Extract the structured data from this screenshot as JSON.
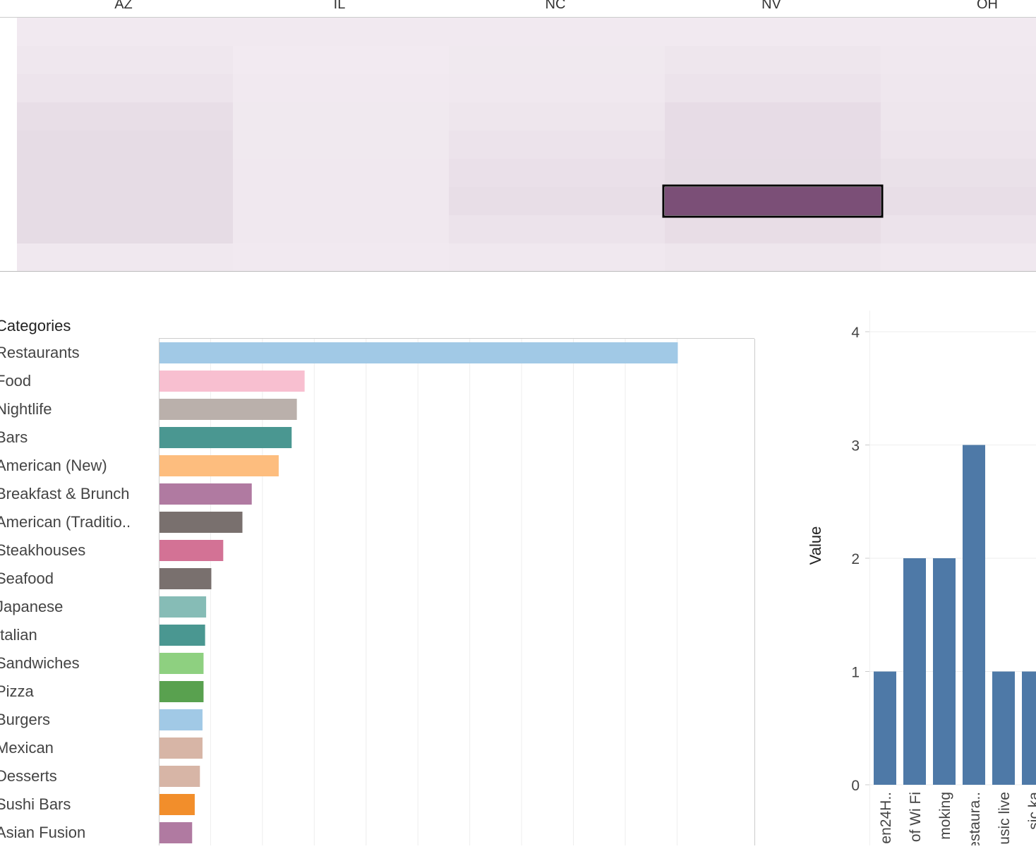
{
  "colors": {
    "heat_low": "#f3ecf2",
    "heat_high": "#7b4f77",
    "column_bar": "#4e79a7",
    "axis": "#cccccc",
    "grid": "#eeeeee"
  },
  "heatmap": {
    "columns": [
      "AZ",
      "IL",
      "NC",
      "NV",
      "OH"
    ],
    "rows": 9,
    "intensity": [
      [
        0.03,
        0.03,
        0.03,
        0.03,
        0.03
      ],
      [
        0.06,
        0.02,
        0.04,
        0.07,
        0.05
      ],
      [
        0.09,
        0.03,
        0.05,
        0.11,
        0.06
      ],
      [
        0.16,
        0.04,
        0.07,
        0.18,
        0.07
      ],
      [
        0.19,
        0.04,
        0.1,
        0.18,
        0.09
      ],
      [
        0.19,
        0.05,
        0.14,
        0.19,
        0.13
      ],
      [
        0.19,
        0.05,
        0.16,
        1.0,
        0.16
      ],
      [
        0.19,
        0.05,
        0.11,
        0.17,
        0.1
      ],
      [
        0.05,
        0.03,
        0.05,
        0.07,
        0.05
      ]
    ],
    "selected": {
      "row": 6,
      "col": 3
    }
  },
  "chart_data": [
    {
      "type": "bar",
      "orientation": "horizontal",
      "title": "Categories",
      "categories": [
        "Restaurants",
        "Food",
        "Nightlife",
        "Bars",
        "American (New)",
        "Breakfast & Brunch",
        "American (Traditio..",
        "Steakhouses",
        "Seafood",
        "Japanese",
        "Italian",
        "Sandwiches",
        "Pizza",
        "Burgers",
        "Mexican",
        "Desserts",
        "Sushi Bars",
        "Asian Fusion"
      ],
      "values": [
        100,
        28,
        26.5,
        25.5,
        23,
        17.8,
        16,
        12.3,
        10,
        9,
        8.8,
        8.5,
        8.5,
        8.3,
        8.3,
        7.8,
        6.8,
        6.3
      ],
      "colors": [
        "#a1c9e6",
        "#f8bfd0",
        "#bab0ab",
        "#4a9791",
        "#fdbd7e",
        "#b07aa1",
        "#79706e",
        "#d37295",
        "#79706e",
        "#86bcb6",
        "#4a9791",
        "#8ed080",
        "#59a14f",
        "#a1c9e6",
        "#d7b5a6",
        "#d7b5a6",
        "#f28e2b",
        "#b07aa1"
      ],
      "xlim": [
        0,
        105
      ],
      "grid": true
    },
    {
      "type": "bar",
      "orientation": "vertical",
      "ylabel": "Value",
      "ylim": [
        0,
        4
      ],
      "yticks": [
        0,
        1,
        2,
        3,
        4
      ],
      "categories": [
        "en24H..",
        "of Wi Fi",
        "moking",
        "estaura..",
        "usic live",
        "sic ka"
      ],
      "values": [
        1,
        2,
        2,
        3,
        1,
        1
      ],
      "grid": true
    }
  ]
}
